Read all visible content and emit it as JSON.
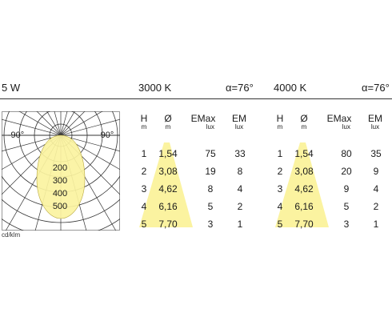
{
  "header": {
    "power": "5 W",
    "block1": {
      "color_temp": "3000 K",
      "angle": "α=76°"
    },
    "block2": {
      "color_temp": "4000 K",
      "angle": "α=76°"
    }
  },
  "polar": {
    "angle_left": "-90°",
    "angle_right": "90°",
    "intensity_labels": [
      "200",
      "300",
      "400",
      "500"
    ],
    "unit": "cd/klm",
    "colors": {
      "beam": "#fbf3a0",
      "grid": "#333333",
      "frame": "#999999"
    }
  },
  "table_headers": {
    "h": {
      "label": "H",
      "unit": "m"
    },
    "d": {
      "label": "Ø",
      "unit": "m"
    },
    "emax": {
      "label": "EMax",
      "unit": "lux"
    },
    "em": {
      "label": "EM",
      "unit": "lux"
    }
  },
  "table1": {
    "rows": [
      {
        "h": "1",
        "d": "1,54",
        "emax": "75",
        "em": "33"
      },
      {
        "h": "2",
        "d": "3,08",
        "emax": "19",
        "em": "8"
      },
      {
        "h": "3",
        "d": "4,62",
        "emax": "8",
        "em": "4"
      },
      {
        "h": "4",
        "d": "6,16",
        "emax": "5",
        "em": "2"
      },
      {
        "h": "5",
        "d": "7,70",
        "emax": "3",
        "em": "1"
      }
    ]
  },
  "table2": {
    "rows": [
      {
        "h": "1",
        "d": "1,54",
        "emax": "80",
        "em": "35"
      },
      {
        "h": "2",
        "d": "3,08",
        "emax": "20",
        "em": "9"
      },
      {
        "h": "3",
        "d": "4,62",
        "emax": "9",
        "em": "4"
      },
      {
        "h": "4",
        "d": "6,16",
        "emax": "5",
        "em": "2"
      },
      {
        "h": "5",
        "d": "7,70",
        "emax": "3",
        "em": "1"
      }
    ]
  },
  "cone_color": "#fbf3a0"
}
